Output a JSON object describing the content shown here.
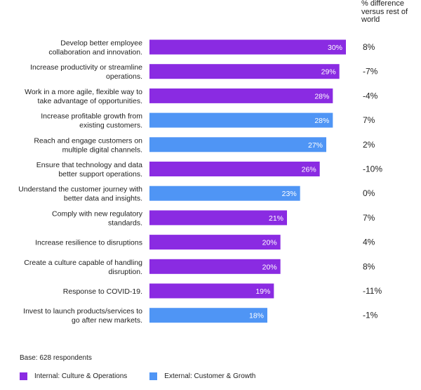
{
  "chart_data": {
    "type": "bar",
    "orientation": "horizontal",
    "diff_header": "% difference versus rest of world",
    "base_note": "Base: 628 respondents",
    "xlim": [
      0,
      30
    ],
    "groups": {
      "internal": {
        "label": "Internal: Culture & Operations",
        "color": "#8a2be2"
      },
      "external": {
        "label": "External: Customer & Growth",
        "color": "#4f95f5"
      }
    },
    "categories": [
      [
        "Develop better employee",
        "collaboration and innovation."
      ],
      [
        "Increase productivity or streamline",
        "operations."
      ],
      [
        "Work in a more agile, flexible way to",
        "take advantage of opportunities."
      ],
      [
        "Increase profitable growth from",
        "existing customers."
      ],
      [
        "Reach and engage customers on",
        "multiple digital channels."
      ],
      [
        "Ensure that technology and data",
        "better support operations."
      ],
      [
        "Understand the customer journey with",
        "better data and insights."
      ],
      [
        "Comply with new regulatory",
        "standards."
      ],
      [
        "Increase resilience to disruptions"
      ],
      [
        "Create a culture capable of handling",
        "disruption."
      ],
      [
        "Response to COVID-19."
      ],
      [
        "Invest to launch products/services to",
        "go after new markets."
      ]
    ],
    "values": [
      30,
      29,
      28,
      28,
      27,
      26,
      23,
      21,
      20,
      20,
      19,
      18
    ],
    "value_labels": [
      "30%",
      "29%",
      "28%",
      "28%",
      "27%",
      "26%",
      "23%",
      "21%",
      "20%",
      "20%",
      "19%",
      "18%"
    ],
    "group_of_bar": [
      "internal",
      "internal",
      "internal",
      "external",
      "external",
      "internal",
      "external",
      "internal",
      "internal",
      "internal",
      "internal",
      "external"
    ],
    "diff_labels": [
      "8%",
      "-7%",
      "-4%",
      "7%",
      "2%",
      "-10%",
      "0%",
      "7%",
      "4%",
      "8%",
      "-11%",
      "-1%"
    ]
  }
}
